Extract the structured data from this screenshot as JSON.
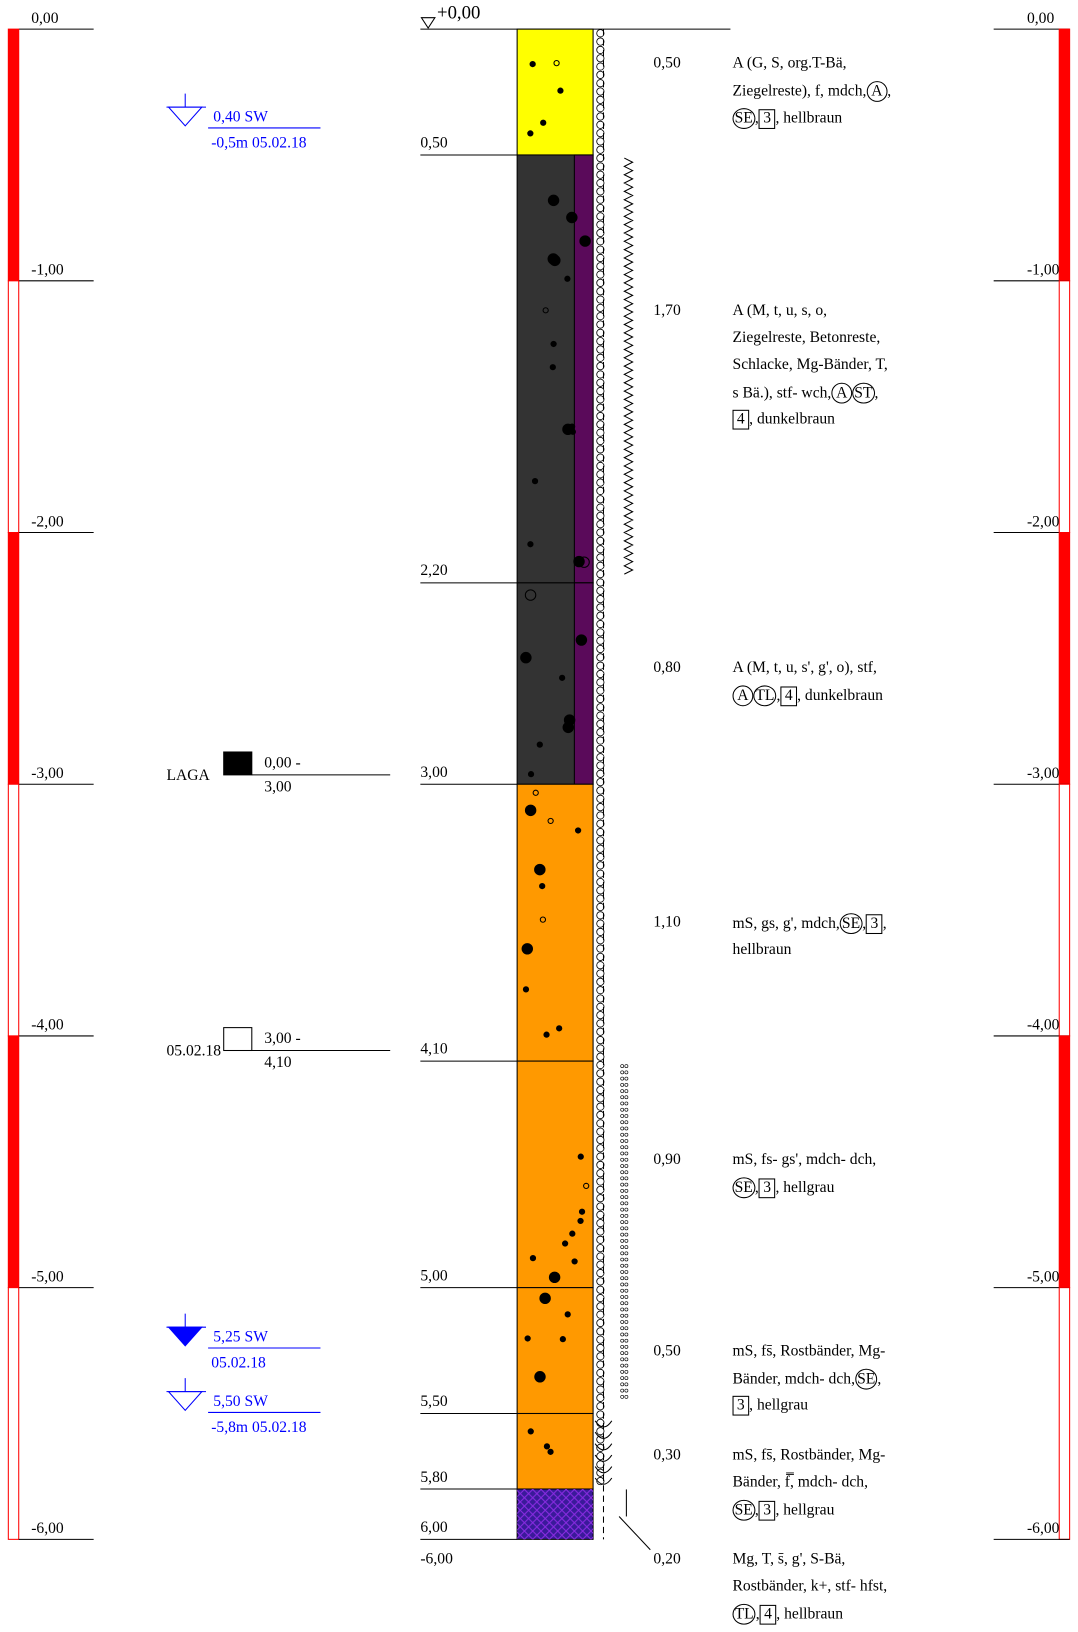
{
  "top_label": "+0,00",
  "scale": [
    "0,00",
    "-1,00",
    "-2,00",
    "-3,00",
    "-4,00",
    "-5,00",
    "-6,00"
  ],
  "layers": [
    {
      "depth_label": "0,50",
      "thickness": "0,50",
      "color": "#ffff00",
      "description": [
        [
          "A (G, S, org.T-Bä,"
        ],
        [
          "Ziegelreste), f, mdch,",
          {
            "circled": "A"
          },
          ","
        ],
        [
          {
            "circled": "SE"
          },
          ",",
          {
            "boxed": "3"
          },
          ", hellbraun"
        ]
      ]
    },
    {
      "depth_label": "2,20",
      "thickness": "1,70",
      "color": "#333333",
      "description": [
        [
          "A (M, t, u, s, o,"
        ],
        [
          "Ziegelreste, Betonreste,"
        ],
        [
          "Schlacke, Mg-Bänder, T,"
        ],
        [
          "s Bä.), stf- wch,",
          {
            "circled": "A"
          },
          {
            "circled": "ST"
          },
          ","
        ],
        [
          {
            "boxed": "4"
          },
          ", dunkelbraun"
        ]
      ]
    },
    {
      "depth_label": "3,00",
      "thickness": "0,80",
      "color": "#333333",
      "description": [
        [
          "A (M, t, u, s', g', o), stf,"
        ],
        [
          {
            "circled": "A"
          },
          {
            "circled": "TL"
          },
          ",",
          {
            "boxed": "4"
          },
          ", dunkelbraun"
        ]
      ]
    },
    {
      "depth_label": "4,10",
      "thickness": "1,10",
      "color": "#ff9900",
      "description": [
        [
          "mS, gs, g', mdch,",
          {
            "circled": "SE"
          },
          ",",
          {
            "boxed": "3"
          },
          ","
        ],
        [
          "hellbraun"
        ]
      ]
    },
    {
      "depth_label": "5,00",
      "thickness": "0,90",
      "color": "#ff9900",
      "description": [
        [
          "mS, fs- gs', mdch- dch,"
        ],
        [
          {
            "circled": "SE"
          },
          ",",
          {
            "boxed": "3"
          },
          ", hellgrau"
        ]
      ]
    },
    {
      "depth_label": "5,50",
      "thickness": "0,50",
      "color": "#ff9900",
      "description": [
        [
          "mS, fs̄, Rostbänder, Mg-"
        ],
        [
          "Bänder, mdch- dch,",
          {
            "circled": "SE"
          },
          ","
        ],
        [
          {
            "boxed": "3"
          },
          ", hellgrau"
        ]
      ]
    },
    {
      "depth_label": "5,80",
      "thickness": "0,30",
      "color": "#ff9900",
      "description": [
        [
          "mS, fs̄, Rostbänder, Mg-"
        ],
        [
          "Bänder, f̿, mdch- dch,"
        ],
        [
          {
            "circled": "SE"
          },
          ",",
          {
            "boxed": "3"
          },
          ", hellgrau"
        ]
      ]
    },
    {
      "depth_label": "6,00",
      "thickness": "0,20",
      "color": "#3a1a9a",
      "description": [
        [
          "Mg, T, s̄, g', S-Bä,"
        ],
        [
          "Rostbänder, k+, stf- hfst,"
        ],
        [
          {
            "circled": "TL"
          },
          ",",
          {
            "boxed": "4"
          },
          ", hellbraun"
        ]
      ]
    }
  ],
  "bottom_label": "-6,00",
  "water_levels": [
    {
      "label": "0,40 SW",
      "note": "-0,5m 05.02.18",
      "filled": false
    },
    {
      "label": "5,25 SW",
      "note": "05.02.18",
      "filled": true
    },
    {
      "label": "5,50 SW",
      "note": "-5,8m 05.02.18",
      "filled": false
    }
  ],
  "samples": [
    {
      "name": "LAGA",
      "range_from": "0,00 -",
      "range_to": "3,00",
      "filled": true
    },
    {
      "name": "05.02.18",
      "range_from": "3,00 -",
      "range_to": "4,10",
      "filled": false
    }
  ]
}
